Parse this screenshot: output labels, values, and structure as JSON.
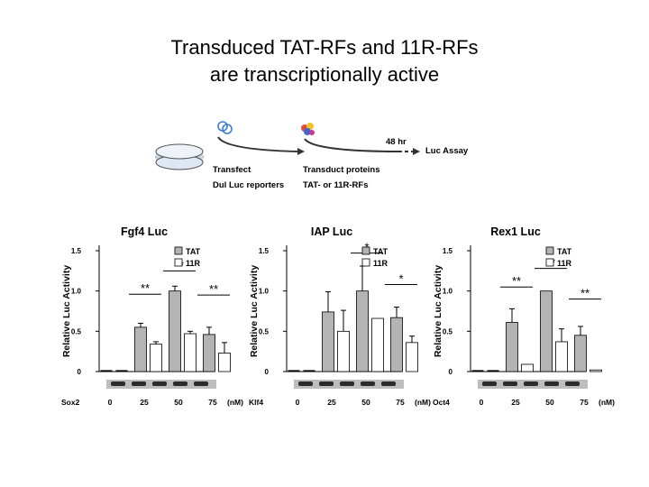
{
  "slide": {
    "title_line1": "Transduced TAT-RFs and 11R-RFs",
    "title_line2": "are transcriptionally active"
  },
  "schematic": {
    "transfect_label": "Transfect",
    "reporter_label": "Dul Luc reporters",
    "transduct_label": "Transduct proteins",
    "proteins_label": "TAT- or 11R-RFs",
    "time_label": "48 hr",
    "assay_label": "Luc Assay"
  },
  "colors": {
    "tat": "#b4b4b4",
    "r11": "#ffffff",
    "axis": "#000000"
  },
  "chart_data": [
    {
      "type": "bar",
      "title": "Fgf4  Luc",
      "ylabel": "Relative Luc Activity",
      "ylim": [
        0,
        1.5
      ],
      "yticks": [
        "0",
        "0.5",
        "1.0",
        "1.5"
      ],
      "factor": "Sox2",
      "unit": "(nM)",
      "categories": [
        "0",
        "25",
        "50",
        "75"
      ],
      "legend": [
        "TAT",
        "11R"
      ],
      "series": [
        {
          "name": "TAT",
          "values": [
            0.0,
            0.55,
            1.0,
            0.46
          ],
          "errors": [
            0,
            0.05,
            0.06,
            0.09
          ]
        },
        {
          "name": "11R",
          "values": [
            0.0,
            0.34,
            0.47,
            0.23
          ],
          "errors": [
            0,
            0.03,
            0.03,
            0.13
          ]
        }
      ],
      "significance": [
        "**",
        "**",
        "**"
      ]
    },
    {
      "type": "bar",
      "title": "IAP  Luc",
      "ylabel": "Relative Luc Activity",
      "ylim": [
        0,
        1.5
      ],
      "yticks": [
        "0",
        "0.5",
        "1.0",
        "1.5"
      ],
      "factor": "Klf4",
      "unit": "(nM)",
      "categories": [
        "0",
        "25",
        "50",
        "75"
      ],
      "legend": [
        "TAT",
        "11R"
      ],
      "series": [
        {
          "name": "TAT",
          "values": [
            0.0,
            0.74,
            1.0,
            0.67
          ],
          "errors": [
            0,
            0.25,
            0.31,
            0.13
          ]
        },
        {
          "name": "11R",
          "values": [
            0.0,
            0.5,
            0.66,
            0.36
          ],
          "errors": [
            0,
            0.26,
            0.0,
            0.08
          ]
        }
      ],
      "significance": [
        "*",
        "*"
      ]
    },
    {
      "type": "bar",
      "title": "Rex1  Luc",
      "ylabel": "Relative Luc Activity",
      "ylim": [
        0,
        1.5
      ],
      "yticks": [
        "0",
        "0.5",
        "1.0",
        "1.5"
      ],
      "factor": "Oct4",
      "unit": "(nM)",
      "categories": [
        "0",
        "25",
        "50",
        "75"
      ],
      "legend": [
        "TAT",
        "11R"
      ],
      "series": [
        {
          "name": "TAT",
          "values": [
            0.0,
            0.61,
            1.0,
            0.45
          ],
          "errors": [
            0,
            0.17,
            0.0,
            0.11
          ]
        },
        {
          "name": "11R",
          "values": [
            0.0,
            0.09,
            0.37,
            0.02
          ],
          "errors": [
            0,
            0.0,
            0.16,
            0.0
          ]
        }
      ],
      "significance": [
        "**",
        "**",
        "**"
      ]
    }
  ]
}
